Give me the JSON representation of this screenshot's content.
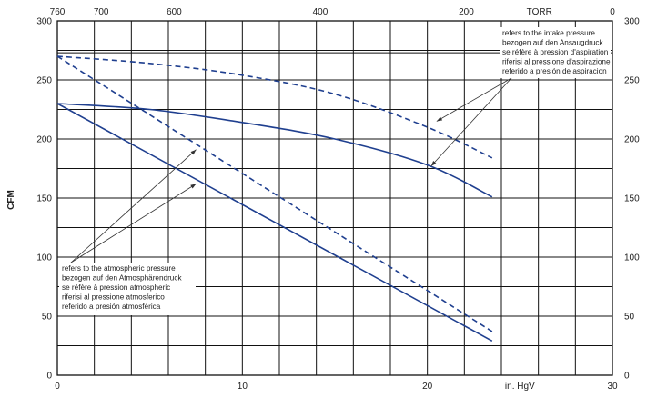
{
  "chart_data": {
    "type": "line",
    "ylabel": "CFM",
    "x_bottom": {
      "unit_label": "in. HgV",
      "ticks": [
        0,
        10,
        20,
        30
      ],
      "range": [
        0,
        30
      ]
    },
    "x_top": {
      "unit_label": "TORR",
      "ticks": [
        760,
        700,
        600,
        400,
        200,
        0
      ],
      "range": [
        760,
        0
      ]
    },
    "y_left": {
      "ticks": [
        0,
        50,
        100,
        150,
        200,
        250,
        300
      ],
      "range": [
        0,
        300
      ]
    },
    "y_right": {
      "ticks": [
        0,
        50,
        100,
        150,
        200,
        250,
        300
      ],
      "range": [
        0,
        300
      ]
    },
    "grid": true,
    "series": [
      {
        "style": "solid",
        "x": [
          0,
          5,
          10,
          15,
          20,
          23.5
        ],
        "y": [
          230,
          225,
          214,
          200,
          178,
          151
        ]
      },
      {
        "style": "dashed",
        "x": [
          0,
          5,
          10,
          15,
          20,
          23.5
        ],
        "y": [
          270,
          264,
          254,
          238,
          210,
          184
        ]
      },
      {
        "style": "solid",
        "x": [
          0,
          23.5
        ],
        "y": [
          230,
          29
        ]
      },
      {
        "style": "dashed",
        "x": [
          0,
          23.5
        ],
        "y": [
          270,
          37
        ]
      }
    ],
    "annotations": [
      {
        "id": "intake",
        "lines": [
          "refers to the intake pressure",
          "bezogen auf den Ansaugdruck",
          "se réfère à pression d'aspiration",
          "riferisi al pressione d'aspirazione",
          "referido a presión de aspiracion"
        ],
        "targets": [
          {
            "x": 20.5,
            "y": 215
          },
          {
            "x": 20.2,
            "y": 177
          }
        ]
      },
      {
        "id": "atmospheric",
        "lines": [
          "refers to the atmospheric pressure",
          "bezogen auf den Atmosphärendruck",
          "se réfère à pression atmospheric",
          "riferisi al pressione atmosferico",
          "referido a presión atmosférica"
        ],
        "targets": [
          {
            "x": 7.5,
            "y": 191
          },
          {
            "x": 7.5,
            "y": 162
          }
        ]
      }
    ],
    "color": "#1f3f8f"
  }
}
